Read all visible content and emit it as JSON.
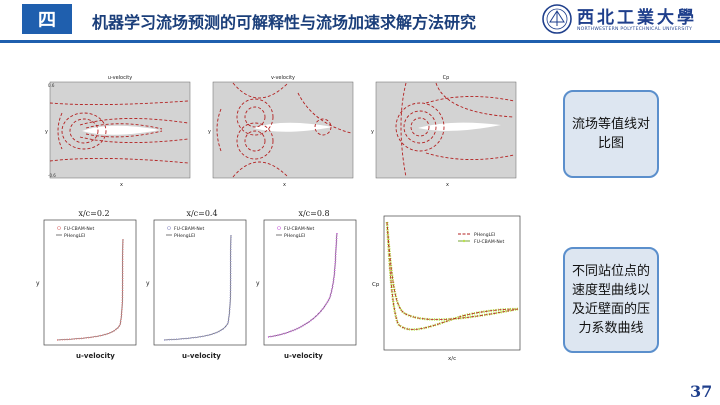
{
  "header": {
    "section": "四",
    "title": "机器学习流场预测的可解释性与流场加速求解方法研究",
    "logo_name": "西北工業大學",
    "logo_sub": "NORTHWESTERN POLYTECHNICAL UNIVERSITY"
  },
  "contour_plots": [
    {
      "title": "u-velocity"
    },
    {
      "title": "v-velocity"
    },
    {
      "title": "Cp"
    }
  ],
  "profiles": [
    {
      "title": "x/c=0.2",
      "legend": [
        "FU-CBAM-Net",
        "PHengLEI"
      ],
      "xlabel": "u-velocity",
      "ylabel": "y",
      "color": "#e08080"
    },
    {
      "title": "x/c=0.4",
      "legend": [
        "FU-CBAM-Net",
        "PHengLEI"
      ],
      "xlabel": "u-velocity",
      "ylabel": "y",
      "color": "#9a9acc"
    },
    {
      "title": "x/c=0.8",
      "legend": [
        "FU-CBAM-Net",
        "PHengLEI"
      ],
      "xlabel": "u-velocity",
      "ylabel": "y",
      "color": "#d070e0"
    }
  ],
  "cp_plot": {
    "legend": [
      "PHengLEI",
      "FU-CBAM-Net"
    ],
    "xlabel": "x/c",
    "ylabel": "Cp"
  },
  "callouts": {
    "top": "流场等值线对比图",
    "bottom": "不同站位点的速度型曲线以及近壁面的压力系数曲线"
  },
  "page_number": "37"
}
